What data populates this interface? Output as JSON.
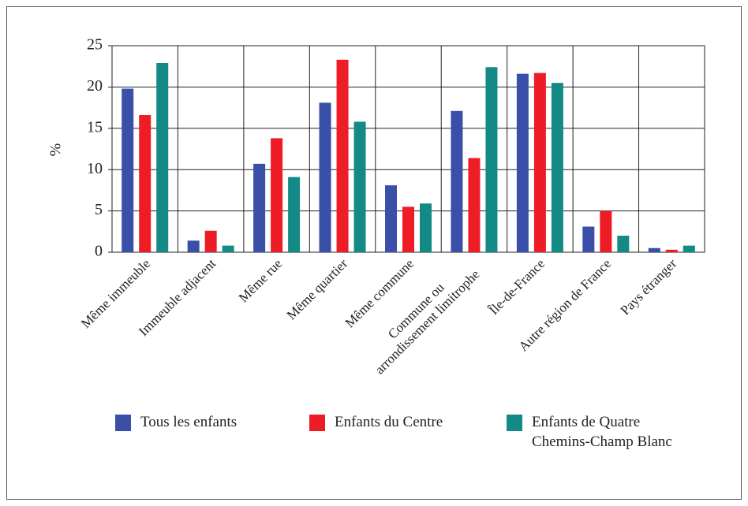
{
  "chart_data": {
    "type": "bar",
    "ylabel": "%",
    "categories": [
      "Même immeuble",
      "Immeuble adjacent",
      "Même rue",
      "Même quartier",
      "Même commune",
      "Commune ou arrondissement limitrophe",
      "Île-de-France",
      "Autre région de France",
      "Pays étranger"
    ],
    "series": [
      {
        "name": "Tous les enfants",
        "color": "#3a4fa8",
        "values": [
          19.8,
          1.4,
          10.7,
          18.1,
          8.1,
          17.1,
          21.6,
          3.1,
          0.5
        ]
      },
      {
        "name": "Enfants du Centre",
        "color": "#ee1c25",
        "values": [
          16.6,
          2.6,
          13.8,
          23.3,
          5.5,
          11.4,
          21.7,
          5.0,
          0.3
        ]
      },
      {
        "name": "Enfants de Quatre Chemins-Champ Blanc",
        "color": "#138a85",
        "values": [
          22.9,
          0.8,
          9.1,
          15.8,
          5.9,
          22.4,
          20.5,
          2.0,
          0.8
        ]
      }
    ],
    "ylim": [
      0,
      25
    ],
    "yticks": [
      0,
      5,
      10,
      15,
      20,
      25
    ],
    "grid": true,
    "legend": "bottom"
  }
}
